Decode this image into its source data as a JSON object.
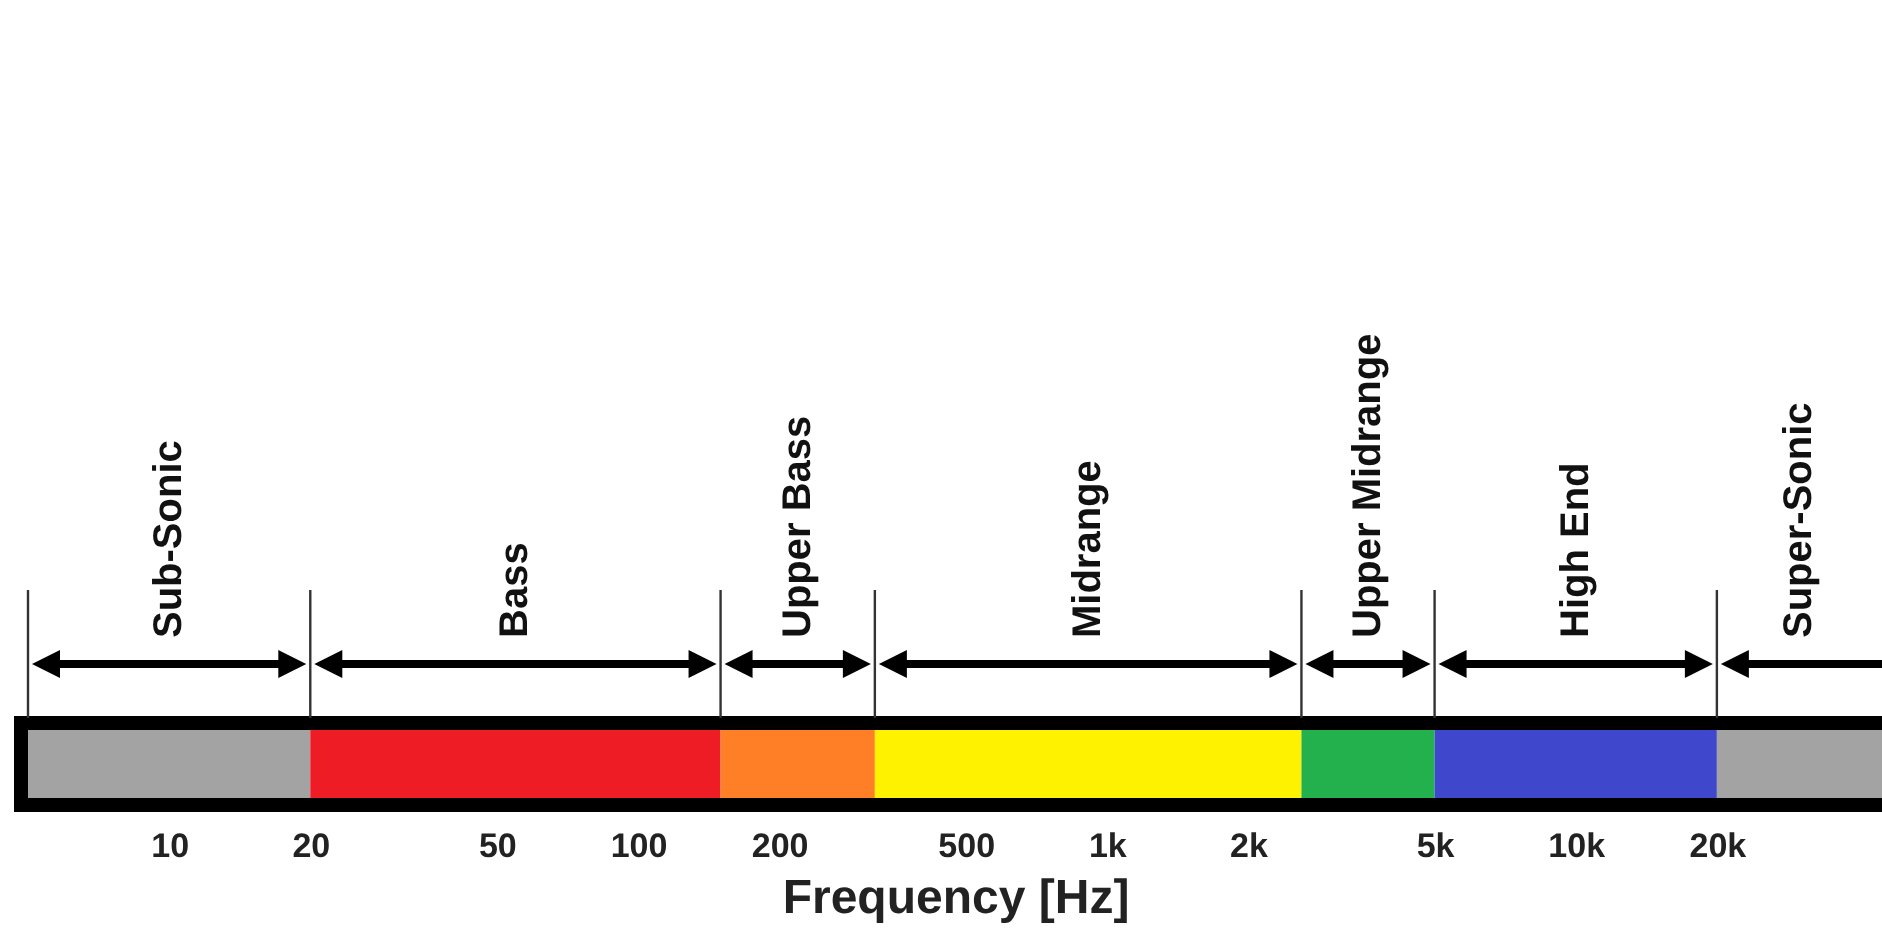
{
  "chart_data": {
    "type": "bar",
    "orientation": "horizontal",
    "xlabel": "Frequency [Hz]",
    "log": "x",
    "xlim": [
      5,
      45000
    ],
    "xticks": [
      10,
      20,
      50,
      100,
      200,
      500,
      {
        "value": 1000,
        "label": "1k"
      },
      {
        "value": 2000,
        "label": "2k"
      },
      {
        "value": 5000,
        "label": "5k"
      },
      {
        "value": 10000,
        "label": "10k"
      },
      {
        "value": 20000,
        "label": "20k"
      }
    ],
    "categories": [
      null
    ],
    "series": [
      {
        "name": "Sub-Sonic",
        "color": "#a3a3a3",
        "base": [
          5
        ],
        "values": [
          15
        ]
      },
      {
        "name": "Bass",
        "color": "#ee1c24",
        "base": [
          20
        ],
        "values": [
          130
        ]
      },
      {
        "name": "Upper Bass",
        "color": "#ff7f27",
        "base": [
          150
        ],
        "values": [
          170
        ]
      },
      {
        "name": "Midrange",
        "color": "#fff200",
        "base": [
          320
        ],
        "values": [
          2280
        ]
      },
      {
        "name": "Upper Midrange",
        "color": "#22b14c",
        "base": [
          2600
        ],
        "values": [
          2400
        ]
      },
      {
        "name": "High End",
        "color": "#3f48cc",
        "base": [
          5000
        ],
        "values": [
          15000
        ]
      },
      {
        "name": "Super-Sonic",
        "color": "#a3a3a3",
        "base": [
          20000
        ],
        "values": [
          25000
        ]
      }
    ]
  }
}
